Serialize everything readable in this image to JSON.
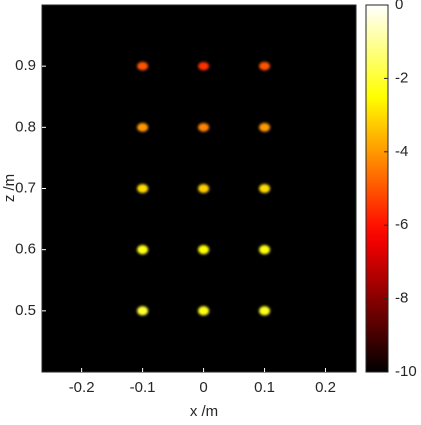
{
  "chart_data": {
    "type": "heatmap",
    "colormap": "hot",
    "xlabel": "x /m",
    "ylabel": "z /m",
    "x": [
      -0.1,
      0,
      0.1,
      -0.1,
      0,
      0.1,
      -0.1,
      0,
      0.1,
      -0.1,
      0,
      0.1,
      -0.1,
      0,
      0.1
    ],
    "y": [
      0.5,
      0.5,
      0.5,
      0.6,
      0.6,
      0.6,
      0.7,
      0.7,
      0.7,
      0.8,
      0.8,
      0.8,
      0.9,
      0.9,
      0.9
    ],
    "values": [
      -2,
      -2.3,
      -2.2,
      -2.3,
      -2.5,
      -2.4,
      -3,
      -3.2,
      -3,
      -4,
      -4.3,
      -4,
      -5,
      -5.5,
      -5
    ],
    "xlim": [
      -0.265,
      0.25
    ],
    "xticks": [
      -0.2,
      -0.1,
      0,
      0.1,
      0.2
    ],
    "ylim": [
      0.4,
      1.0
    ],
    "yticks": [
      0.5,
      0.6,
      0.7,
      0.8,
      0.9
    ],
    "clim": [
      -10,
      0
    ],
    "cticks": [
      -10,
      -8,
      -6,
      -4,
      -2,
      0
    ]
  }
}
